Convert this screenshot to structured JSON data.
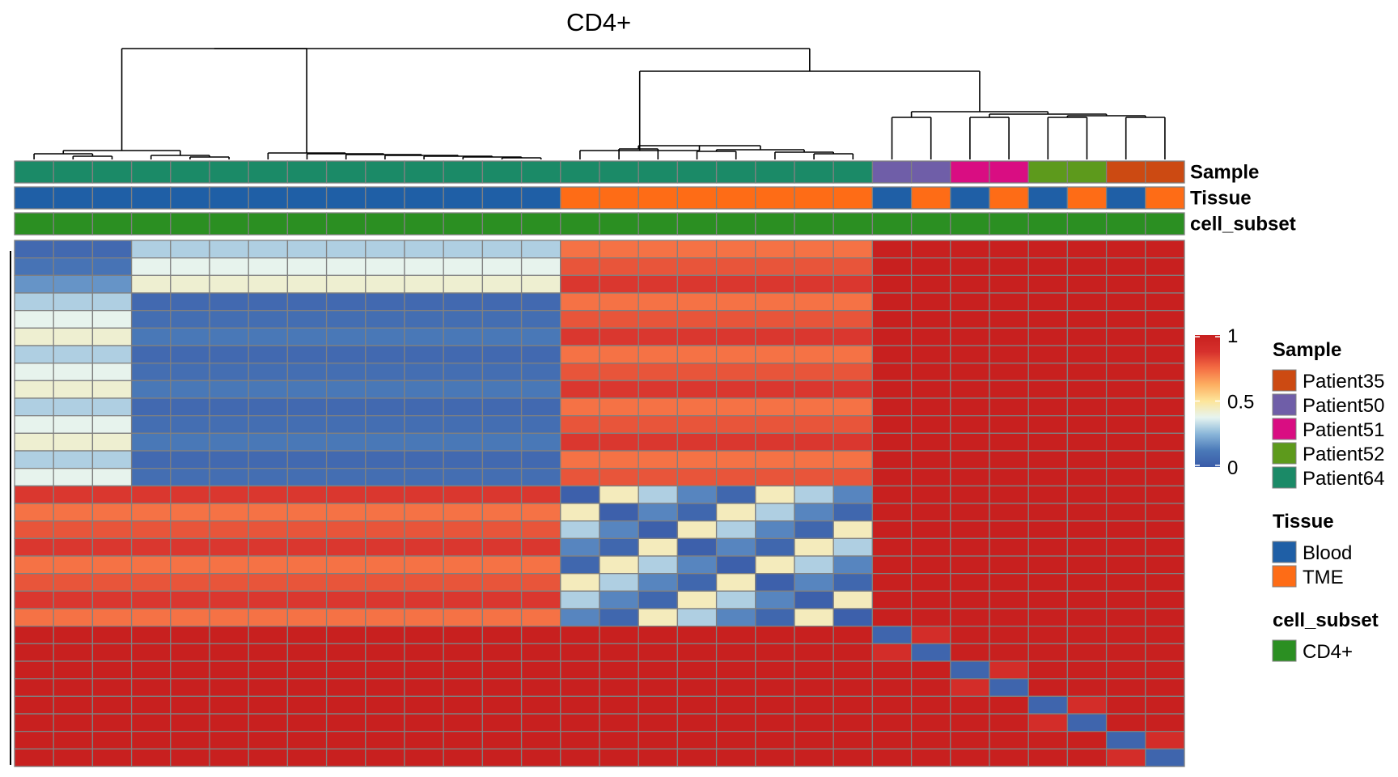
{
  "chart_data": {
    "type": "heatmap",
    "title": "CD4+",
    "columns": 30,
    "rows": 30,
    "column_annotations": [
      {
        "name": "Sample",
        "values": [
          "Patient64",
          "Patient64",
          "Patient64",
          "Patient64",
          "Patient64",
          "Patient64",
          "Patient64",
          "Patient64",
          "Patient64",
          "Patient64",
          "Patient64",
          "Patient64",
          "Patient64",
          "Patient64",
          "Patient64",
          "Patient64",
          "Patient64",
          "Patient64",
          "Patient64",
          "Patient64",
          "Patient64",
          "Patient64",
          "Patient50",
          "Patient50",
          "Patient51",
          "Patient51",
          "Patient52",
          "Patient52",
          "Patient35",
          "Patient35"
        ]
      },
      {
        "name": "Tissue",
        "values": [
          "Blood",
          "Blood",
          "Blood",
          "Blood",
          "Blood",
          "Blood",
          "Blood",
          "Blood",
          "Blood",
          "Blood",
          "Blood",
          "Blood",
          "Blood",
          "Blood",
          "TME",
          "TME",
          "TME",
          "TME",
          "TME",
          "TME",
          "TME",
          "TME",
          "Blood",
          "TME",
          "Blood",
          "TME",
          "Blood",
          "TME",
          "Blood",
          "TME"
        ]
      },
      {
        "name": "cell_subset",
        "values": [
          "CD4+",
          "CD4+",
          "CD4+",
          "CD4+",
          "CD4+",
          "CD4+",
          "CD4+",
          "CD4+",
          "CD4+",
          "CD4+",
          "CD4+",
          "CD4+",
          "CD4+",
          "CD4+",
          "CD4+",
          "CD4+",
          "CD4+",
          "CD4+",
          "CD4+",
          "CD4+",
          "CD4+",
          "CD4+",
          "CD4+",
          "CD4+",
          "CD4+",
          "CD4+",
          "CD4+",
          "CD4+",
          "CD4+",
          "CD4+"
        ]
      }
    ],
    "block_values": {
      "A_within_first": [
        0.06,
        0.1,
        0.18
      ],
      "A_first_vs_rest": [
        0.3,
        0.38,
        0.42
      ],
      "A_rest_within": [
        0.06,
        0.08,
        0.12
      ],
      "A_vs_B": [
        0.74,
        0.8,
        0.86
      ],
      "B_within": [
        0.05,
        0.15,
        0.3,
        0.45
      ],
      "other_patients": 1.0
    },
    "color_scale": {
      "type": "continuous",
      "min": 0,
      "max": 1,
      "ticks": [
        "1",
        "0.5",
        "0"
      ],
      "stops": [
        "#3a5ba8",
        "#4a79b8",
        "#8ab6d9",
        "#e6f4f0",
        "#fde59a",
        "#fdae61",
        "#f46d43",
        "#d6302c",
        "#c8201f"
      ]
    },
    "legends": [
      {
        "title": "Sample",
        "items": [
          {
            "label": "Patient35",
            "color": "#cc4a12"
          },
          {
            "label": "Patient50",
            "color": "#6f5ea8"
          },
          {
            "label": "Patient51",
            "color": "#d90d82"
          },
          {
            "label": "Patient52",
            "color": "#5d9a1c"
          },
          {
            "label": "Patient64",
            "color": "#1b8a67"
          }
        ]
      },
      {
        "title": "Tissue",
        "items": [
          {
            "label": "Blood",
            "color": "#1f5fa6"
          },
          {
            "label": "TME",
            "color": "#fe6c16"
          }
        ]
      },
      {
        "title": "cell_subset",
        "items": [
          {
            "label": "CD4+",
            "color": "#2b8f22"
          }
        ]
      }
    ],
    "grid": true,
    "dendrogram": "columns",
    "legend_position": "right"
  }
}
